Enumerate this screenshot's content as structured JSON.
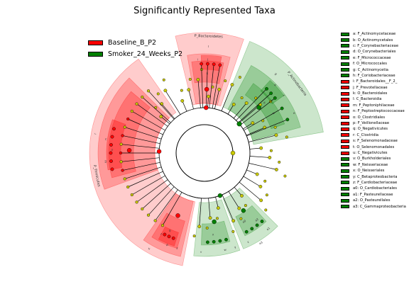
{
  "chart_data": {
    "type": "cladogram",
    "title": "Significantly Represented Taxa",
    "groups": [
      {
        "name": "Baseline_B_P2",
        "color": "#ff0000"
      },
      {
        "name": "Smoker_24_Weeks_P2",
        "color": "#008000"
      }
    ],
    "clades": [
      {
        "key": "a",
        "name": "F_Actinomycetaceae",
        "group": "Smoker_24_Weeks_P2"
      },
      {
        "key": "b",
        "name": "O_Actinomycetales",
        "group": "Smoker_24_Weeks_P2"
      },
      {
        "key": "c",
        "name": "F_Corynebacteriaceae",
        "group": "Smoker_24_Weeks_P2"
      },
      {
        "key": "d",
        "name": "O_Corynebacteriales",
        "group": "Smoker_24_Weeks_P2"
      },
      {
        "key": "e",
        "name": "F_Micrococcaceae",
        "group": "Smoker_24_Weeks_P2"
      },
      {
        "key": "f",
        "name": "O_Micrococcales",
        "group": "Smoker_24_Weeks_P2"
      },
      {
        "key": "g",
        "name": "C_Actinomycetia",
        "group": "Smoker_24_Weeks_P2"
      },
      {
        "key": "h",
        "name": "F_Coriobacteriaceae",
        "group": "Smoker_24_Weeks_P2"
      },
      {
        "key": "i",
        "name": "F_Bacteroidales__F_2_",
        "group": "Baseline_B_P2"
      },
      {
        "key": "j",
        "name": "F_Prevotellaceae",
        "group": "Baseline_B_P2"
      },
      {
        "key": "k",
        "name": "O_Bacteroidales",
        "group": "Baseline_B_P2"
      },
      {
        "key": "l",
        "name": "C_Bacteroidia",
        "group": "Baseline_B_P2"
      },
      {
        "key": "m",
        "name": "F_Peptoniphilaceae",
        "group": "Baseline_B_P2"
      },
      {
        "key": "n",
        "name": "F_Peptostreptococcaceae",
        "group": "Baseline_B_P2"
      },
      {
        "key": "o",
        "name": "O_Clostridiales",
        "group": "Baseline_B_P2"
      },
      {
        "key": "p",
        "name": "F_Veillonellaceae",
        "group": "Baseline_B_P2"
      },
      {
        "key": "q",
        "name": "O_Negativicutes",
        "group": "Baseline_B_P2"
      },
      {
        "key": "r",
        "name": "C_Clostridia",
        "group": "Baseline_B_P2"
      },
      {
        "key": "s",
        "name": "F_Selenomonadaceae",
        "group": "Baseline_B_P2"
      },
      {
        "key": "t",
        "name": "O_Selenomonadales",
        "group": "Baseline_B_P2"
      },
      {
        "key": "u",
        "name": "C_Negativicutes",
        "group": "Baseline_B_P2"
      },
      {
        "key": "v",
        "name": "O_Burkholderiales",
        "group": "Smoker_24_Weeks_P2"
      },
      {
        "key": "w",
        "name": "F_Neisseriaceae",
        "group": "Smoker_24_Weeks_P2"
      },
      {
        "key": "x",
        "name": "O_Neisseriales",
        "group": "Smoker_24_Weeks_P2"
      },
      {
        "key": "y",
        "name": "C_Betaproteobacteria",
        "group": "Smoker_24_Weeks_P2"
      },
      {
        "key": "z",
        "name": "F_Cardiobacteriaceae",
        "group": "Smoker_24_Weeks_P2"
      },
      {
        "key": "a0",
        "name": "O_Cardiobacteriales",
        "group": "Smoker_24_Weeks_P2"
      },
      {
        "key": "a1",
        "name": "F_Pasteurellaceae",
        "group": "Smoker_24_Weeks_P2"
      },
      {
        "key": "a2",
        "name": "O_Pasteurellales",
        "group": "Smoker_24_Weeks_P2"
      },
      {
        "key": "a3",
        "name": "C_Gammaproteobacteria",
        "group": "Smoker_24_Weeks_P2"
      }
    ],
    "phylum_labels": [
      {
        "text": "P_Bacteroidetes",
        "group": "Baseline_B_P2"
      },
      {
        "text": "P_Actinobacteria",
        "group": "Smoker_24_Weeks_P2"
      },
      {
        "text": "P_Firmicutes",
        "group": "Baseline_B_P2"
      }
    ]
  }
}
